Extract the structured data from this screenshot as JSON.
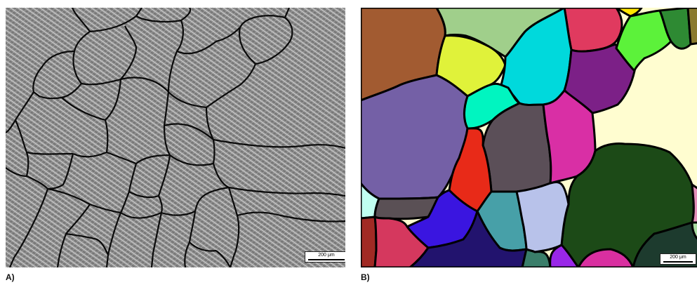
{
  "panels": [
    {
      "id": "A",
      "caption": "A)",
      "scale_bar": "200 μm",
      "style": "grayscale micrograph",
      "colors": {
        "background": "#8e8e8e",
        "boundary": "#0a0a0a"
      }
    },
    {
      "id": "B",
      "caption": "B)",
      "scale_bar": "200 μm",
      "style": "segmented grain map",
      "colors": {
        "boundary": "#000000",
        "grains": [
          "#a25b31",
          "#a0cf8b",
          "#e03a5f",
          "#ffe600",
          "#5cf23a",
          "#2e8a33",
          "#8a7a2e",
          "#e0f23a",
          "#00d9dc",
          "#fffdd0",
          "#7c2087",
          "#00f5c0",
          "#7460a6",
          "#5b4f58",
          "#d92fa5",
          "#e82a18",
          "#1c4a17",
          "#e28fb8",
          "#c0fff0",
          "#5a5055",
          "#3a15e0",
          "#47a0a8",
          "#b8c2ea",
          "#a12a24",
          "#d5385e",
          "#22136e",
          "#3a7e6a",
          "#9927e8",
          "#d92fa0",
          "#1d3b2e",
          "#a9dba0"
        ]
      }
    }
  ]
}
